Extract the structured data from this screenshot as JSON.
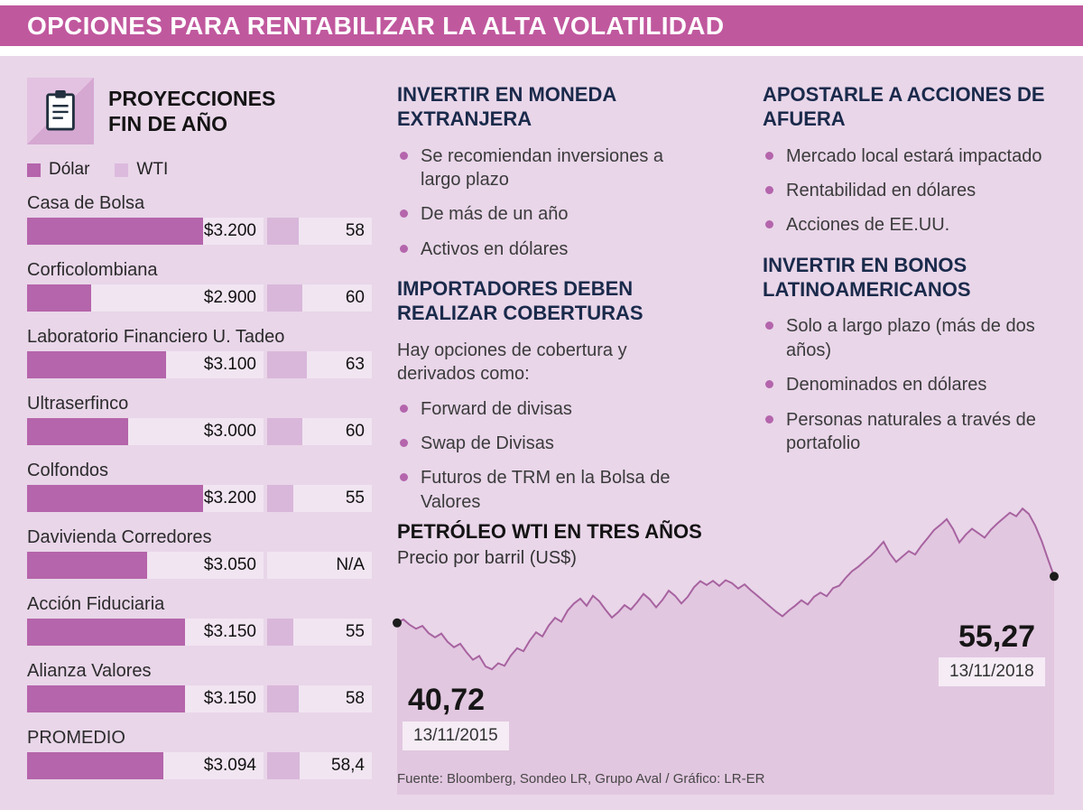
{
  "header": {
    "title": "OPCIONES PARA RENTABILIZAR LA ALTA VOLATILIDAD"
  },
  "projections": {
    "title": "PROYECCIONES FIN DE AÑO"
  },
  "sections": {
    "middle": [
      {
        "heading": "INVERTIR EN MONEDA EXTRANJERA",
        "items": [
          "Se recomiendan inversiones a largo plazo",
          "De más de un año",
          "Activos en dólares"
        ]
      },
      {
        "heading": "IMPORTADORES DEBEN REALIZAR COBERTURAS",
        "intro": "Hay opciones de cobertura y derivados como:",
        "items": [
          "Forward de divisas",
          "Swap de Divisas",
          "Futuros de TRM en la Bolsa de Valores"
        ]
      }
    ],
    "right": [
      {
        "heading": "APOSTARLE A ACCIONES DE AFUERA",
        "items": [
          "Mercado local estará impactado",
          "Rentabilidad en dólares",
          "Acciones de EE.UU."
        ]
      },
      {
        "heading": "INVERTIR EN BONOS LATINOAMERICANOS",
        "items": [
          "Solo a largo plazo (más de dos años)",
          "Denominados en dólares",
          "Personas naturales a través de portafolio"
        ]
      }
    ]
  },
  "chart_data": [
    {
      "type": "bar",
      "title": "PROYECCIONES FIN DE AÑO",
      "categories": [
        "Casa de Bolsa",
        "Corficolombiana",
        "Laboratorio Financiero U. Tadeo",
        "Ultraserfinco",
        "Colfondos",
        "Davivienda Corredores",
        "Acción Fiduciaria",
        "Alianza Valores",
        "PROMEDIO"
      ],
      "series": [
        {
          "name": "Dólar",
          "values": [
            3200,
            2900,
            3100,
            3000,
            3200,
            3050,
            3150,
            3150,
            3094
          ],
          "labels": [
            "$3.200",
            "$2.900",
            "$3.100",
            "$3.000",
            "$3.200",
            "$3.050",
            "$3.150",
            "$3.150",
            "$3.094"
          ]
        },
        {
          "name": "WTI",
          "values": [
            58,
            60,
            63,
            60,
            55,
            null,
            55,
            58,
            58.4
          ],
          "labels": [
            "58",
            "60",
            "63",
            "60",
            "55",
            "N/A",
            "55",
            "58",
            "58,4"
          ]
        }
      ],
      "legend_position": "top",
      "grid": false
    },
    {
      "type": "area",
      "title": "PETRÓLEO WTI EN TRES AÑOS",
      "subtitle": "Precio por barril (US$)",
      "x_range": [
        "13/11/2015",
        "13/11/2018"
      ],
      "start": {
        "label": "40,72",
        "value": 40.72,
        "date": "13/11/2015"
      },
      "end": {
        "label": "55,27",
        "value": 55.27,
        "date": "13/11/2018"
      },
      "ylim": [
        20,
        80
      ],
      "grid": false,
      "values": [
        40.72,
        41.8,
        40.1,
        38.9,
        39.8,
        37.5,
        36.2,
        37.4,
        34.8,
        33.1,
        34.2,
        31.5,
        29.2,
        30.4,
        27.1,
        26.2,
        28.1,
        27.3,
        30.5,
        32.8,
        31.9,
        35.2,
        37.8,
        36.5,
        39.9,
        42.3,
        41.1,
        44.6,
        46.8,
        48.3,
        46.1,
        49.2,
        47.5,
        44.8,
        42.4,
        44.1,
        46.3,
        44.9,
        47.2,
        49.8,
        48.1,
        45.6,
        47.9,
        50.8,
        49.2,
        46.8,
        48.9,
        51.9,
        53.8,
        52.6,
        53.9,
        52.3,
        54.1,
        53.2,
        51.5,
        52.8,
        50.9,
        49.3,
        47.6,
        45.9,
        44.2,
        42.8,
        44.6,
        46.1,
        47.8,
        46.5,
        48.9,
        50.2,
        49.1,
        51.6,
        52.4,
        54.8,
        56.9,
        58.3,
        60.1,
        61.8,
        63.9,
        66.1,
        62.4,
        59.8,
        61.5,
        63.2,
        62.1,
        64.9,
        67.3,
        69.8,
        71.4,
        73.2,
        70.1,
        65.9,
        68.3,
        70.2,
        68.8,
        67.4,
        69.9,
        71.8,
        73.5,
        75.2,
        74.1,
        76.5,
        74.8,
        71.2,
        66.5,
        60.8,
        55.27
      ]
    }
  ],
  "colors": {
    "header_bar": "#c0589e",
    "background": "#e9d6e9",
    "dolar_fill": "#b565ab",
    "wti_fill": "#d9b7da",
    "bar_track": "#f1e5f1",
    "heading_navy": "#1a2a4b",
    "bullet": "#b465ac",
    "area_fill": "#e2c7e0",
    "area_stroke": "#a763a0"
  },
  "footer": {
    "source": "Fuente: Bloomberg, Sondeo LR, Grupo Aval / Gráfico: LR-ER"
  }
}
